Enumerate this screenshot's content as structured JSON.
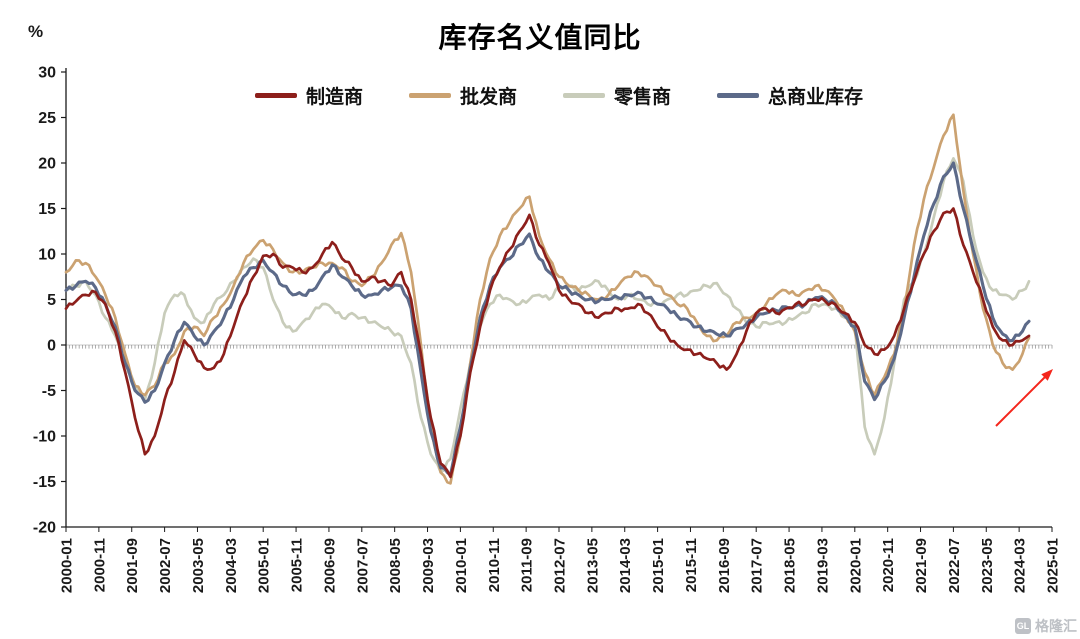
{
  "watermark": {
    "logo_text": "GL",
    "text": "格隆汇"
  },
  "chart_data": {
    "type": "line",
    "title": "库存名义值同比",
    "y_unit": "%",
    "ylim": [
      -20,
      30
    ],
    "y_ticks": [
      30,
      25,
      20,
      15,
      10,
      5,
      0,
      -5,
      -10,
      -15,
      -20
    ],
    "x_range_months": [
      0,
      300
    ],
    "x_tick_interval_months": 10,
    "x_tick_labels": [
      "2000-01",
      "2000-11",
      "2001-09",
      "2002-07",
      "2003-05",
      "2004-03",
      "2005-01",
      "2005-11",
      "2006-09",
      "2007-07",
      "2008-05",
      "2009-03",
      "2010-01",
      "2010-11",
      "2011-09",
      "2012-07",
      "2013-05",
      "2014-03",
      "2015-01",
      "2015-11",
      "2016-09",
      "2017-07",
      "2018-05",
      "2019-03",
      "2020-01",
      "2020-11",
      "2021-09",
      "2022-07",
      "2023-05",
      "2024-03",
      "2025-01"
    ],
    "grid": "zero-line-only",
    "legend_position": "top",
    "x": [
      0,
      3,
      6,
      9,
      12,
      15,
      18,
      21,
      24,
      27,
      30,
      33,
      36,
      39,
      42,
      45,
      48,
      51,
      54,
      57,
      60,
      63,
      66,
      69,
      72,
      75,
      78,
      81,
      84,
      87,
      90,
      93,
      96,
      99,
      102,
      105,
      108,
      111,
      114,
      117,
      120,
      123,
      126,
      129,
      132,
      135,
      138,
      141,
      144,
      147,
      150,
      153,
      156,
      159,
      162,
      165,
      168,
      171,
      174,
      177,
      180,
      183,
      186,
      189,
      192,
      195,
      198,
      201,
      204,
      207,
      210,
      213,
      216,
      219,
      222,
      225,
      228,
      231,
      234,
      237,
      240,
      243,
      246,
      249,
      252,
      255,
      258,
      261,
      264,
      267,
      270,
      273,
      276,
      279,
      282,
      285,
      288,
      291,
      293
    ],
    "series": [
      {
        "name": "制造商",
        "color": "#8D1F1B",
        "values": [
          4.0,
          4.8,
          5.5,
          5.8,
          4.5,
          1.5,
          -3.0,
          -8.0,
          -12.0,
          -10.0,
          -6.0,
          -3.0,
          0.5,
          -1.0,
          -2.5,
          -2.5,
          -1.0,
          2.0,
          5.0,
          7.5,
          9.8,
          10.0,
          8.5,
          8.5,
          8.0,
          8.5,
          10.0,
          11.3,
          9.5,
          8.5,
          7.0,
          7.5,
          7.0,
          6.5,
          8.0,
          5.0,
          -1.0,
          -8.0,
          -13.0,
          -14.5,
          -10.0,
          -3.0,
          2.0,
          6.0,
          8.5,
          10.5,
          12.5,
          14.3,
          11.0,
          9.0,
          6.0,
          5.0,
          4.5,
          3.5,
          3.0,
          3.5,
          4.0,
          4.0,
          4.5,
          3.5,
          2.0,
          1.0,
          0.0,
          -0.5,
          -1.0,
          -1.5,
          -2.0,
          -2.7,
          -1.0,
          1.5,
          3.5,
          4.0,
          3.5,
          4.0,
          4.5,
          4.5,
          5.0,
          4.8,
          4.5,
          3.5,
          2.5,
          0.0,
          -1.0,
          -0.5,
          1.0,
          4.0,
          7.0,
          10.0,
          12.5,
          14.5,
          15.0,
          11.0,
          8.0,
          5.0,
          2.0,
          0.5,
          0.0,
          0.5,
          1.0
        ]
      },
      {
        "name": "批发商",
        "color": "#CBA271",
        "values": [
          8.0,
          9.3,
          9.0,
          7.5,
          5.5,
          3.0,
          -1.0,
          -4.5,
          -5.5,
          -4.5,
          -2.0,
          -1.0,
          1.5,
          2.0,
          1.0,
          3.0,
          4.5,
          6.5,
          9.0,
          10.5,
          11.5,
          10.5,
          9.0,
          8.0,
          8.0,
          8.5,
          9.0,
          9.0,
          8.5,
          7.0,
          6.5,
          7.5,
          9.0,
          11.0,
          12.3,
          8.0,
          0.0,
          -9.0,
          -14.0,
          -15.2,
          -10.0,
          -2.0,
          5.0,
          9.5,
          12.0,
          13.5,
          15.0,
          16.3,
          12.0,
          9.5,
          7.5,
          6.5,
          6.0,
          5.5,
          5.0,
          5.5,
          6.5,
          7.5,
          8.0,
          7.5,
          6.5,
          5.5,
          4.5,
          4.0,
          2.5,
          1.0,
          0.5,
          1.0,
          2.5,
          3.0,
          3.5,
          4.5,
          5.5,
          6.0,
          5.5,
          6.0,
          6.5,
          6.0,
          5.0,
          3.5,
          1.5,
          -3.0,
          -5.5,
          -3.5,
          -1.0,
          4.0,
          11.0,
          16.0,
          19.5,
          23.0,
          25.3,
          17.0,
          10.0,
          4.0,
          0.0,
          -2.0,
          -2.7,
          -1.0,
          0.8
        ]
      },
      {
        "name": "零售商",
        "color": "#C8CCBA",
        "values": [
          6.0,
          6.5,
          7.0,
          5.5,
          3.0,
          1.0,
          -2.0,
          -4.5,
          -6.0,
          -2.0,
          3.5,
          5.5,
          5.5,
          3.0,
          2.5,
          4.5,
          5.5,
          7.0,
          8.5,
          9.5,
          8.5,
          5.0,
          2.5,
          1.5,
          2.5,
          3.5,
          4.5,
          4.0,
          3.0,
          3.5,
          3.0,
          2.5,
          2.0,
          1.5,
          1.0,
          -2.0,
          -8.0,
          -12.0,
          -14.0,
          -12.5,
          -7.0,
          -2.0,
          2.0,
          4.5,
          5.5,
          5.0,
          4.5,
          5.0,
          5.5,
          5.0,
          6.5,
          6.5,
          6.0,
          6.5,
          7.0,
          6.0,
          5.0,
          5.5,
          5.0,
          4.5,
          4.5,
          5.0,
          5.5,
          5.5,
          6.0,
          6.5,
          6.8,
          5.5,
          4.0,
          2.5,
          2.0,
          2.5,
          2.5,
          2.5,
          3.0,
          3.5,
          4.5,
          4.5,
          4.0,
          3.0,
          2.0,
          -9.0,
          -12.0,
          -8.0,
          -2.0,
          5.0,
          7.0,
          10.0,
          14.0,
          18.0,
          20.5,
          18.0,
          12.0,
          8.0,
          6.0,
          5.5,
          5.0,
          6.0,
          7.0
        ]
      },
      {
        "name": "总商业库存",
        "color": "#5C6A89",
        "values": [
          6.0,
          6.5,
          7.0,
          6.3,
          4.5,
          2.0,
          -2.0,
          -5.0,
          -6.3,
          -5.0,
          -2.0,
          0.5,
          2.5,
          1.0,
          0.0,
          1.5,
          3.0,
          5.0,
          7.5,
          8.5,
          9.3,
          8.0,
          6.5,
          5.5,
          5.5,
          6.0,
          7.5,
          8.8,
          7.5,
          6.5,
          5.5,
          5.5,
          6.0,
          6.3,
          6.5,
          4.0,
          -3.0,
          -9.5,
          -13.5,
          -14.3,
          -9.0,
          -2.5,
          3.0,
          6.5,
          8.5,
          9.5,
          11.0,
          12.2,
          9.5,
          8.0,
          6.5,
          6.0,
          5.5,
          5.0,
          4.8,
          5.0,
          5.2,
          5.5,
          5.8,
          5.2,
          4.5,
          4.0,
          3.2,
          2.8,
          2.0,
          1.5,
          1.2,
          1.0,
          1.8,
          2.3,
          3.0,
          3.5,
          3.8,
          4.2,
          4.3,
          4.5,
          5.2,
          5.0,
          4.5,
          3.2,
          2.0,
          -4.0,
          -6.0,
          -4.0,
          -1.5,
          3.0,
          7.5,
          12.0,
          15.5,
          18.5,
          20.0,
          15.0,
          10.5,
          6.5,
          3.0,
          1.2,
          0.5,
          1.5,
          2.6
        ]
      }
    ],
    "annotations": [
      {
        "type": "arrow",
        "direction": "up-right",
        "color": "#F4261C"
      }
    ]
  }
}
